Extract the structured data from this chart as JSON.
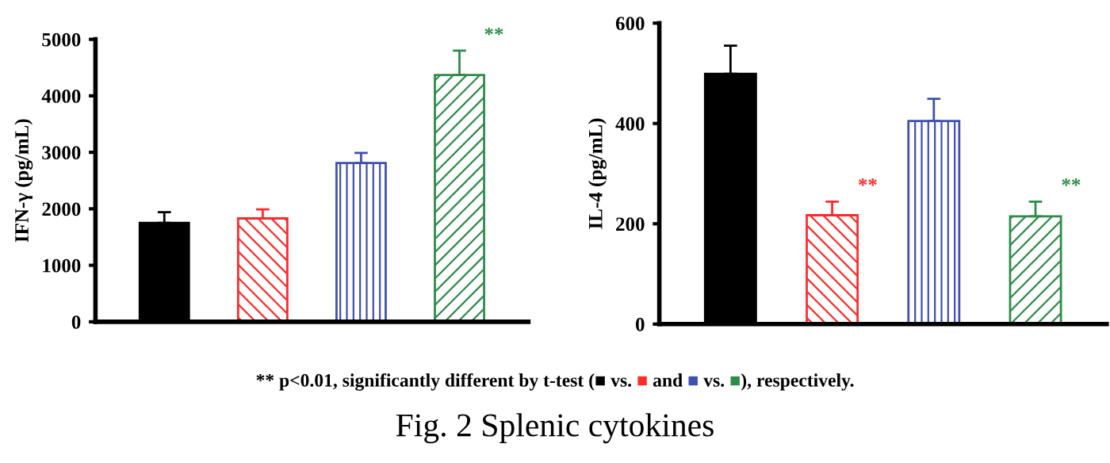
{
  "chart_data": [
    {
      "type": "bar",
      "ylabel": "IFN-γ (pg/mL)",
      "categories": [
        null,
        null,
        null,
        null
      ],
      "values": [
        1750,
        1830,
        2810,
        4370
      ],
      "colors": [
        "#000000",
        "#ff2a2a",
        "#4050b0",
        "#2e8b4a"
      ],
      "errors": [
        [
          1750,
          1940
        ],
        [
          1830,
          1990
        ],
        [
          2810,
          2990
        ],
        [
          4370,
          4800
        ]
      ],
      "value_labels": [
        null,
        null,
        null,
        "**"
      ],
      "ylim": [
        0,
        5000
      ],
      "yticks": [
        0,
        1000,
        2000,
        3000,
        4000,
        5000
      ],
      "grid": false,
      "annotations": [
        "** p<0.01, significantly different by t-test (■ vs. ■ and ■ vs. ■), respectively.",
        "Fig. 2 Splenic cytokines"
      ]
    },
    {
      "type": "bar",
      "ylabel": "IL-4 (pg/mL)",
      "categories": [
        null,
        null,
        null,
        null
      ],
      "values": [
        499,
        217,
        405,
        215
      ],
      "colors": [
        "#000000",
        "#ff2a2a",
        "#4050b0",
        "#2e8b4a"
      ],
      "errors": [
        [
          499,
          555
        ],
        [
          217,
          244
        ],
        [
          405,
          449
        ],
        [
          215,
          244
        ]
      ],
      "value_labels": [
        null,
        "**",
        null,
        "**"
      ],
      "ylim": [
        0,
        600
      ],
      "yticks": [
        0,
        200,
        400,
        600
      ],
      "grid": false
    }
  ]
}
